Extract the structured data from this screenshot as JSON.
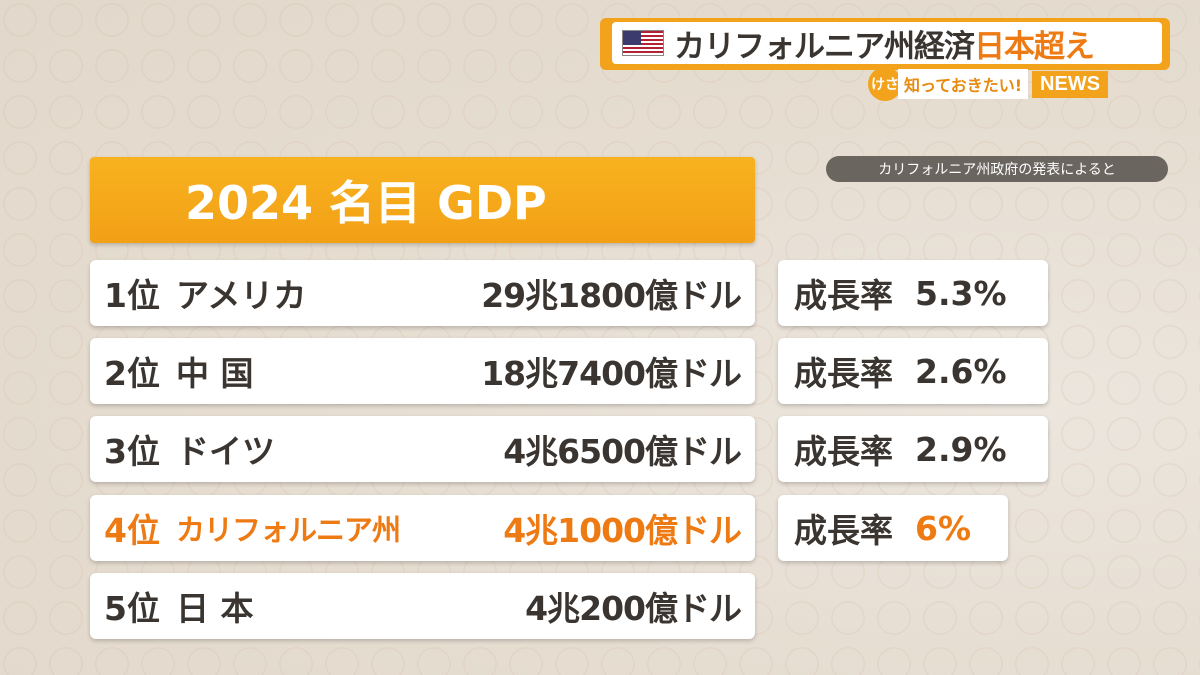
{
  "headline": {
    "main": "カリフォルニア州経済",
    "accent": "日本超え",
    "flag_icon": "us-flag-icon"
  },
  "segment": {
    "circle": "けさ",
    "label": "知っておきたい!",
    "news": "NEWS"
  },
  "caption": "カリフォルニア州政府の発表によると",
  "title": "2024 名目 GDP",
  "colors": {
    "accent": "#f3a21b",
    "highlight": "#ee7a13",
    "text": "#3a3530"
  },
  "rows": [
    {
      "rank": "1位",
      "name": "アメリカ",
      "gdp": "29兆1800億ドル",
      "growth_label": "成長率",
      "growth": "5.3%"
    },
    {
      "rank": "2位",
      "name": "中 国",
      "gdp": "18兆7400億ドル",
      "growth_label": "成長率",
      "growth": "2.6%"
    },
    {
      "rank": "3位",
      "name": "ドイツ",
      "gdp": "4兆6500億ドル",
      "growth_label": "成長率",
      "growth": "2.9%"
    },
    {
      "rank": "4位",
      "name": "カリフォルニア州",
      "gdp": "4兆1000億ドル",
      "growth_label": "成長率",
      "growth": "6%"
    },
    {
      "rank": "5位",
      "name": "日 本",
      "gdp": "4兆200億ドル"
    }
  ]
}
